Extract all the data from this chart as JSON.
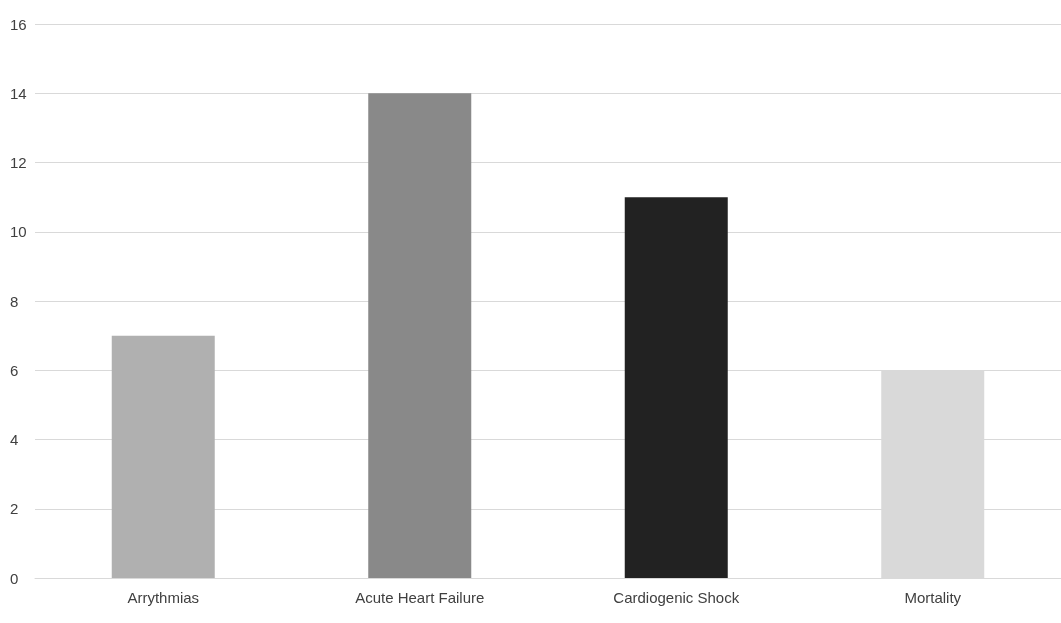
{
  "chart_data": {
    "type": "bar",
    "categories": [
      "Arrythmias",
      "Acute Heart Failure",
      "Cardiogenic Shock",
      "Mortality"
    ],
    "values": [
      7,
      14,
      11,
      6
    ],
    "colors": [
      "#b0b0b0",
      "#898989",
      "#222222",
      "#d9d9d9"
    ],
    "ylim": [
      0,
      16
    ],
    "yticks": [
      0,
      2,
      4,
      6,
      8,
      10,
      12,
      14,
      16
    ],
    "grid": "y"
  }
}
